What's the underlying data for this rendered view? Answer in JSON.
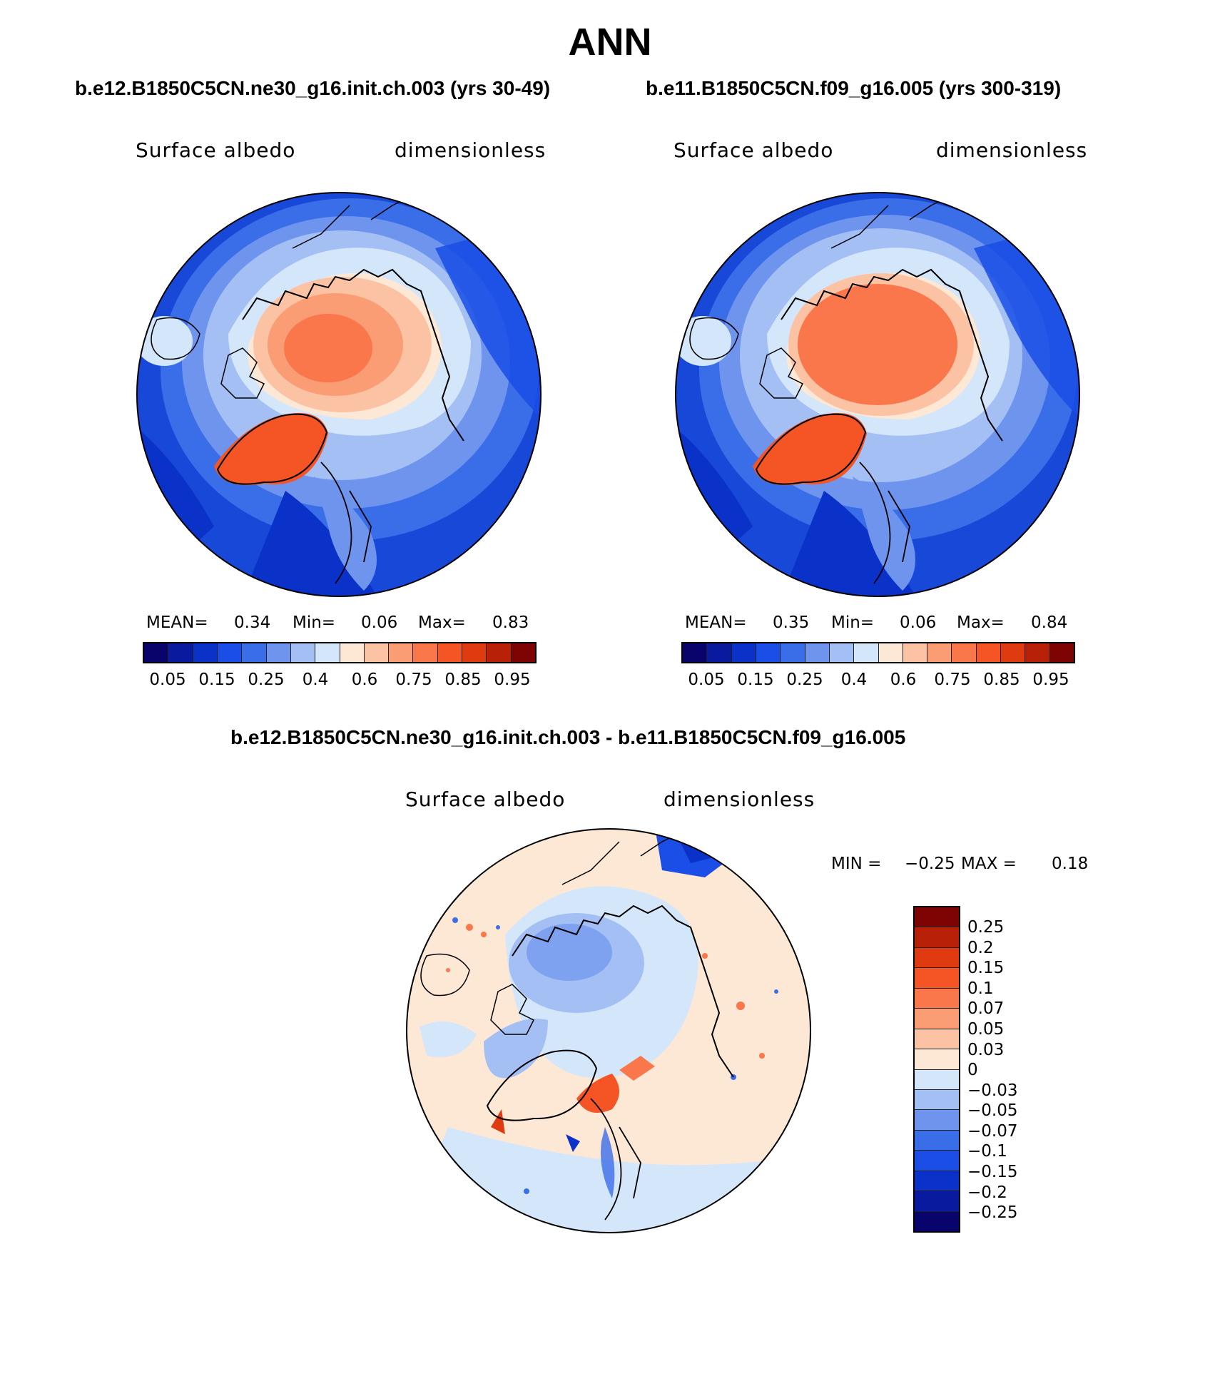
{
  "title": "ANN",
  "panels": [
    {
      "case_title": "b.e12.B1850C5CN.ne30_g16.init.ch.003 (yrs 30-49)",
      "left_label": "Surface albedo",
      "right_label": "dimensionless",
      "stats": {
        "mean_label": "MEAN=",
        "mean": "0.34",
        "min_label": "Min=",
        "min": "0.06",
        "max_label": "Max=",
        "max": "0.83"
      }
    },
    {
      "case_title": "b.e11.B1850C5CN.f09_g16.005 (yrs 300-319)",
      "left_label": "Surface albedo",
      "right_label": "dimensionless",
      "stats": {
        "mean_label": "MEAN=",
        "mean": "0.35",
        "min_label": "Min=",
        "min": "0.06",
        "max_label": "Max=",
        "max": "0.84"
      }
    }
  ],
  "diff": {
    "case_title": "b.e12.B1850C5CN.ne30_g16.init.ch.003 - b.e11.B1850C5CN.f09_g16.005",
    "left_label": "Surface albedo",
    "right_label": "dimensionless",
    "stats": {
      "min_label": "MIN =",
      "min": "−0.25",
      "max_label": "MAX =",
      "max": "0.18"
    }
  },
  "colorbar_main": {
    "colors": [
      "#08046b",
      "#0a1a9e",
      "#0b32c8",
      "#1a4ee6",
      "#3a6de8",
      "#6e94ee",
      "#a4bff4",
      "#d4e6fa",
      "#fde8d6",
      "#fcc2a4",
      "#fa9c74",
      "#f9774a",
      "#f55424",
      "#e03a10",
      "#b82108",
      "#7e0404"
    ],
    "tick_labels": [
      "0.05",
      "0.15",
      "0.25",
      "0.4",
      "0.6",
      "0.75",
      "0.85",
      "0.95"
    ]
  },
  "colorbar_diff": {
    "colors": [
      "#7e0404",
      "#b82108",
      "#e03a10",
      "#f55424",
      "#f9774a",
      "#fa9c74",
      "#fcc2a4",
      "#fde8d6",
      "#d4e6fa",
      "#a4bff4",
      "#6e94ee",
      "#3a6de8",
      "#1a4ee6",
      "#0b32c8",
      "#0a1a9e",
      "#08046b"
    ],
    "tick_labels": [
      "0.25",
      "0.2",
      "0.15",
      "0.1",
      "0.07",
      "0.05",
      "0.03",
      "0",
      "−0.03",
      "−0.05",
      "−0.07",
      "−0.1",
      "−0.15",
      "−0.2",
      "−0.25"
    ]
  }
}
